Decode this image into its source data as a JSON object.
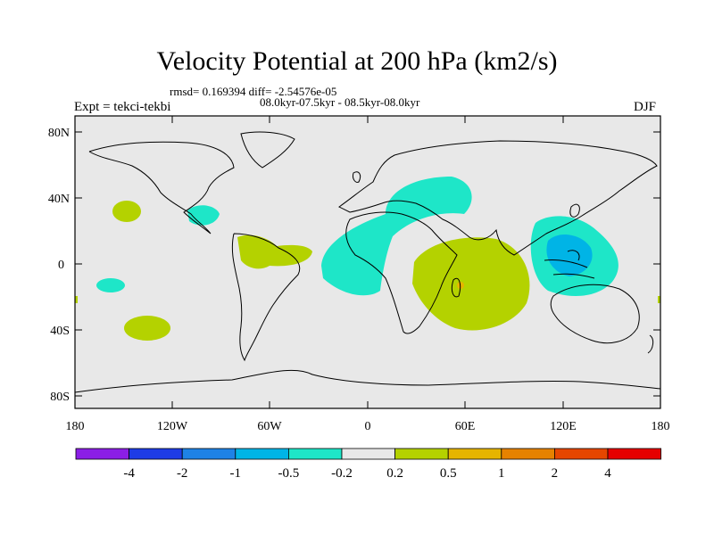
{
  "title": "Velocity Potential at 200 hPa (km2/s)",
  "stats": "rmsd= 0.169394 diff= -2.54576e-05",
  "period": "08.0kyr-07.5kyr - 08.5kyr-08.0kyr",
  "experiment": "Expt = tekci-tekbi",
  "season": "DJF",
  "lat_labels": [
    "80N",
    "40N",
    "0",
    "40S",
    "80S"
  ],
  "lon_labels": [
    "180",
    "120W",
    "60W",
    "0",
    "60E",
    "120E",
    "180"
  ],
  "colorbar": {
    "labels": [
      "-4",
      "-2",
      "-1",
      "-0.5",
      "-0.2",
      "0.2",
      "0.5",
      "1",
      "2",
      "4"
    ],
    "colors": [
      "#8b1ee6",
      "#1e3ce6",
      "#1e82e6",
      "#00b4e6",
      "#1ee6c8",
      "#e8e8e8",
      "#b4d200",
      "#e6b400",
      "#e68200",
      "#e64600",
      "#e60000"
    ]
  },
  "colors": {
    "background": "#e8e8e8",
    "land_outline": "#000000"
  }
}
